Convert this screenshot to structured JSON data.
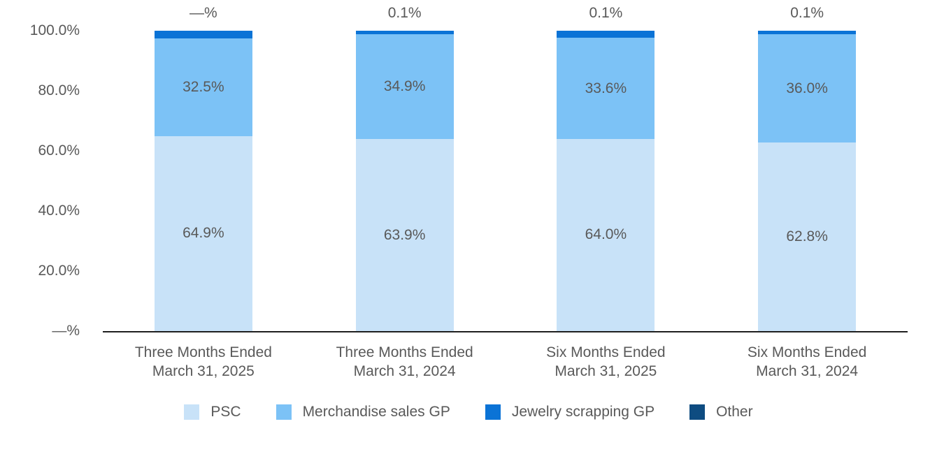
{
  "chart_data": {
    "type": "bar",
    "stacked": true,
    "percent_stacked": true,
    "title": "",
    "xlabel": "",
    "ylabel": "",
    "categories": [
      [
        "Three Months Ended",
        "March 31, 2025"
      ],
      [
        "Three Months Ended",
        "March 31, 2024"
      ],
      [
        "Six Months Ended",
        "March 31, 2025"
      ],
      [
        "Six Months Ended",
        "March 31, 2024"
      ]
    ],
    "series": [
      {
        "name": "PSC",
        "color": "#c8e2f8",
        "values": [
          64.9,
          63.9,
          64.0,
          62.8
        ],
        "labels": [
          "64.9%",
          "63.9%",
          "64.0%",
          "62.8%"
        ],
        "label_position": "center"
      },
      {
        "name": "Merchandise sales GP",
        "color": "#7cc2f6",
        "values": [
          32.5,
          34.9,
          33.6,
          36.0
        ],
        "labels": [
          "32.5%",
          "34.9%",
          "33.6%",
          "36.0%"
        ],
        "label_position": "center"
      },
      {
        "name": "Jewelry scrapping GP",
        "color": "#0b73d6",
        "values": [
          2.6,
          1.1,
          2.3,
          1.1
        ],
        "labels": [
          "2.6%",
          "1.1%",
          "2.3%",
          "1.1%"
        ],
        "label_position": "below-segment"
      },
      {
        "name": "Other",
        "color": "#0e4c81",
        "values": [
          0.0,
          0.1,
          0.1,
          0.1
        ],
        "labels": [
          "—%",
          "0.1%",
          "0.1%",
          "0.1%"
        ],
        "label_position": "above-bar"
      }
    ],
    "y_axis": {
      "tick_labels": [
        "100.0%",
        "80.0%",
        "60.0%",
        "40.0%",
        "20.0%",
        "—%"
      ],
      "tick_values": [
        100,
        80,
        60,
        40,
        20,
        0
      ]
    },
    "ylim": [
      0,
      100
    ],
    "grid": false,
    "legend": {
      "position": "bottom",
      "entries": [
        "PSC",
        "Merchandise sales GP",
        "Jewelry scrapping GP",
        "Other"
      ]
    },
    "colors": {
      "text": "#595959",
      "axis": "#1f1f1f",
      "background": "#ffffff"
    }
  }
}
